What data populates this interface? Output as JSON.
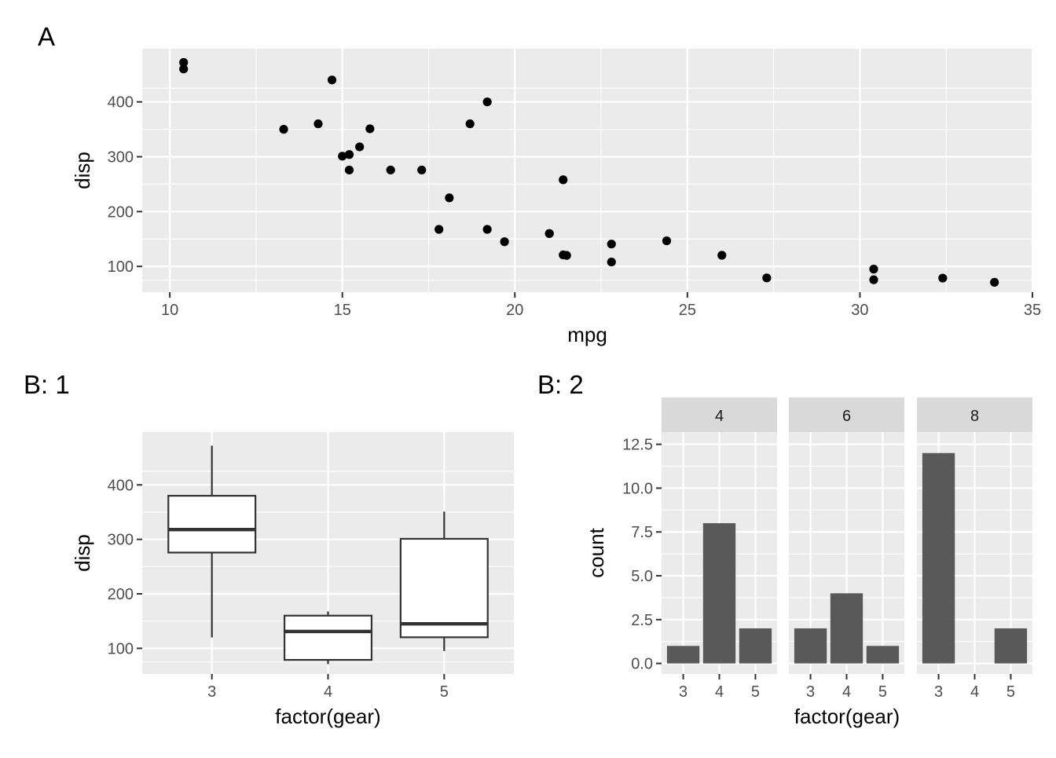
{
  "panels": {
    "a": {
      "tag": "A",
      "chart_data": {
        "type": "scatter",
        "xlabel": "mpg",
        "ylabel": "disp",
        "xlim": [
          9.2,
          35
        ],
        "ylim": [
          53,
          497
        ],
        "x_ticks": [
          10,
          15,
          20,
          25,
          30,
          35
        ],
        "y_ticks": [
          100,
          200,
          300,
          400
        ],
        "grid": true,
        "points": [
          [
            21.0,
            160
          ],
          [
            21.0,
            160
          ],
          [
            22.8,
            108
          ],
          [
            21.4,
            258
          ],
          [
            18.7,
            360
          ],
          [
            18.1,
            225
          ],
          [
            14.3,
            360
          ],
          [
            24.4,
            146.7
          ],
          [
            22.8,
            140.8
          ],
          [
            19.2,
            167.6
          ],
          [
            17.8,
            167.6
          ],
          [
            16.4,
            275.8
          ],
          [
            17.3,
            275.8
          ],
          [
            15.2,
            275.8
          ],
          [
            10.4,
            472
          ],
          [
            10.4,
            460
          ],
          [
            14.7,
            440
          ],
          [
            32.4,
            78.7
          ],
          [
            30.4,
            75.7
          ],
          [
            33.9,
            71.1
          ],
          [
            21.5,
            120.1
          ],
          [
            15.5,
            318
          ],
          [
            15.2,
            304
          ],
          [
            13.3,
            350
          ],
          [
            19.2,
            400
          ],
          [
            27.3,
            79
          ],
          [
            26.0,
            120.3
          ],
          [
            30.4,
            95.1
          ],
          [
            15.8,
            351
          ],
          [
            19.7,
            145
          ],
          [
            15.0,
            301
          ],
          [
            21.4,
            121
          ]
        ]
      }
    },
    "b1": {
      "tag": "B: 1",
      "chart_data": {
        "type": "box",
        "categories": [
          "3",
          "4",
          "5"
        ],
        "xlabel": "factor(gear)",
        "ylabel": "disp",
        "ylim": [
          53,
          497
        ],
        "y_ticks": [
          100,
          200,
          300,
          400
        ],
        "grid": true,
        "boxes": [
          {
            "category": "3",
            "whisker_low": 120.1,
            "q1": 275.8,
            "median": 318,
            "q3": 380,
            "whisker_high": 472
          },
          {
            "category": "4",
            "whisker_low": 71.1,
            "q1": 78.8,
            "median": 130.9,
            "q3": 160,
            "whisker_high": 167.6
          },
          {
            "category": "5",
            "whisker_low": 95.1,
            "q1": 120.3,
            "median": 145,
            "q3": 301,
            "whisker_high": 351
          }
        ]
      }
    },
    "b2": {
      "tag": "B: 2",
      "chart_data": {
        "type": "bar",
        "xlabel": "factor(gear)",
        "ylabel": "count",
        "ylim": [
          -0.6,
          13.2
        ],
        "y_ticks": [
          0.0,
          2.5,
          5.0,
          7.5,
          10.0,
          12.5
        ],
        "y_tick_labels": [
          "0.0",
          "2.5",
          "5.0",
          "7.5",
          "10.0",
          "12.5"
        ],
        "categories": [
          "3",
          "4",
          "5"
        ],
        "facets": [
          {
            "label": "4",
            "values": [
              1,
              8,
              2
            ]
          },
          {
            "label": "6",
            "values": [
              2,
              4,
              1
            ]
          },
          {
            "label": "8",
            "values": [
              12,
              0,
              2
            ]
          }
        ],
        "grid": true
      }
    }
  },
  "colors": {
    "panel_bg": "#ebebeb",
    "grid_major": "#ffffff",
    "point": "#000000",
    "bar_fill": "#595959",
    "box_line": "#333333",
    "strip_bg": "#d9d9d9",
    "tick": "#333333"
  }
}
